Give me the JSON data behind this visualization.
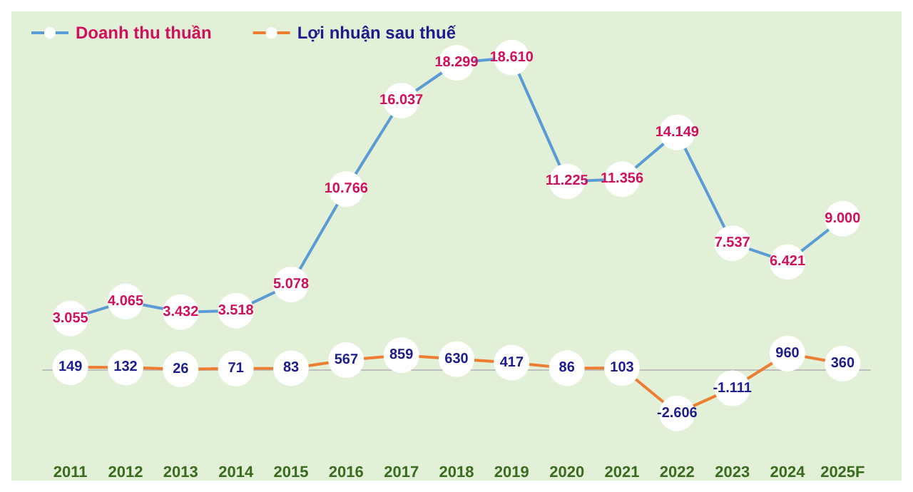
{
  "chart_data": {
    "type": "line",
    "categories": [
      "2011",
      "2012",
      "2013",
      "2014",
      "2015",
      "2016",
      "2017",
      "2018",
      "2019",
      "2020",
      "2021",
      "2022",
      "2023",
      "2024",
      "2025F"
    ],
    "series": [
      {
        "name": "Doanh thu thuần",
        "color": "#5b9bd5",
        "values": [
          3055,
          4065,
          3432,
          3518,
          5078,
          10766,
          16037,
          18299,
          18610,
          11225,
          11356,
          14149,
          7537,
          6421,
          9000
        ],
        "value_labels": [
          "3.055",
          "4.065",
          "3.432",
          "3.518",
          "5.078",
          "10.766",
          "16.037",
          "18.299",
          "18.610",
          "11.225",
          "11.356",
          "14.149",
          "7.537",
          "6.421",
          "9.000"
        ]
      },
      {
        "name": "Lợi nhuận sau thuế",
        "color": "#ed7d31",
        "values": [
          149,
          132,
          26,
          71,
          83,
          567,
          859,
          630,
          417,
          86,
          103,
          -2606,
          -1111,
          960,
          360
        ],
        "value_labels": [
          "149",
          "132",
          "26",
          "71",
          "83",
          "567",
          "859",
          "630",
          "417",
          "86",
          "103",
          "-2.606",
          "-1.111",
          "960",
          "360"
        ]
      }
    ],
    "tick_labels": "x",
    "legend": "top left",
    "marker": "circle",
    "line_style": "solid",
    "grid": false
  }
}
